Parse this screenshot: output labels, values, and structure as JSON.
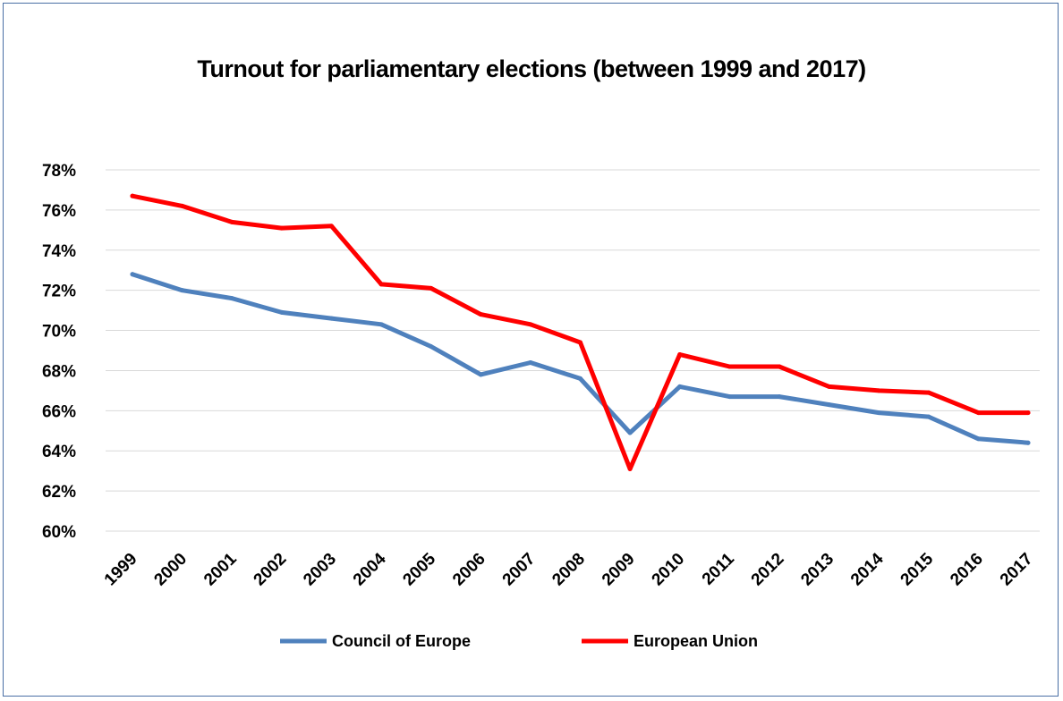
{
  "chart_data": {
    "type": "line",
    "title": "Turnout for parliamentary elections (between 1999 and 2017)",
    "xlabel": "",
    "ylabel": "",
    "x": [
      "1999",
      "2000",
      "2001",
      "2002",
      "2003",
      "2004",
      "2005",
      "2006",
      "2007",
      "2008",
      "2009",
      "2010",
      "2011",
      "2012",
      "2013",
      "2014",
      "2015",
      "2016",
      "2017"
    ],
    "y_ticks": [
      "60%",
      "62%",
      "64%",
      "66%",
      "68%",
      "70%",
      "72%",
      "74%",
      "76%",
      "78%"
    ],
    "ylim": [
      60,
      78
    ],
    "grid": true,
    "legend_position": "bottom",
    "series": [
      {
        "name": "Council of Europe",
        "color": "#4f81bd",
        "values": [
          72.8,
          72.0,
          71.6,
          70.9,
          70.6,
          70.3,
          69.2,
          67.8,
          68.4,
          67.6,
          64.9,
          67.2,
          66.7,
          66.7,
          66.3,
          65.9,
          65.7,
          64.6,
          64.4
        ]
      },
      {
        "name": "European Union",
        "color": "#ff0000",
        "values": [
          76.7,
          76.2,
          75.4,
          75.1,
          75.2,
          72.3,
          72.1,
          70.8,
          70.3,
          69.4,
          63.1,
          68.8,
          68.2,
          68.2,
          67.2,
          67.0,
          66.9,
          65.9,
          65.9
        ]
      }
    ]
  }
}
